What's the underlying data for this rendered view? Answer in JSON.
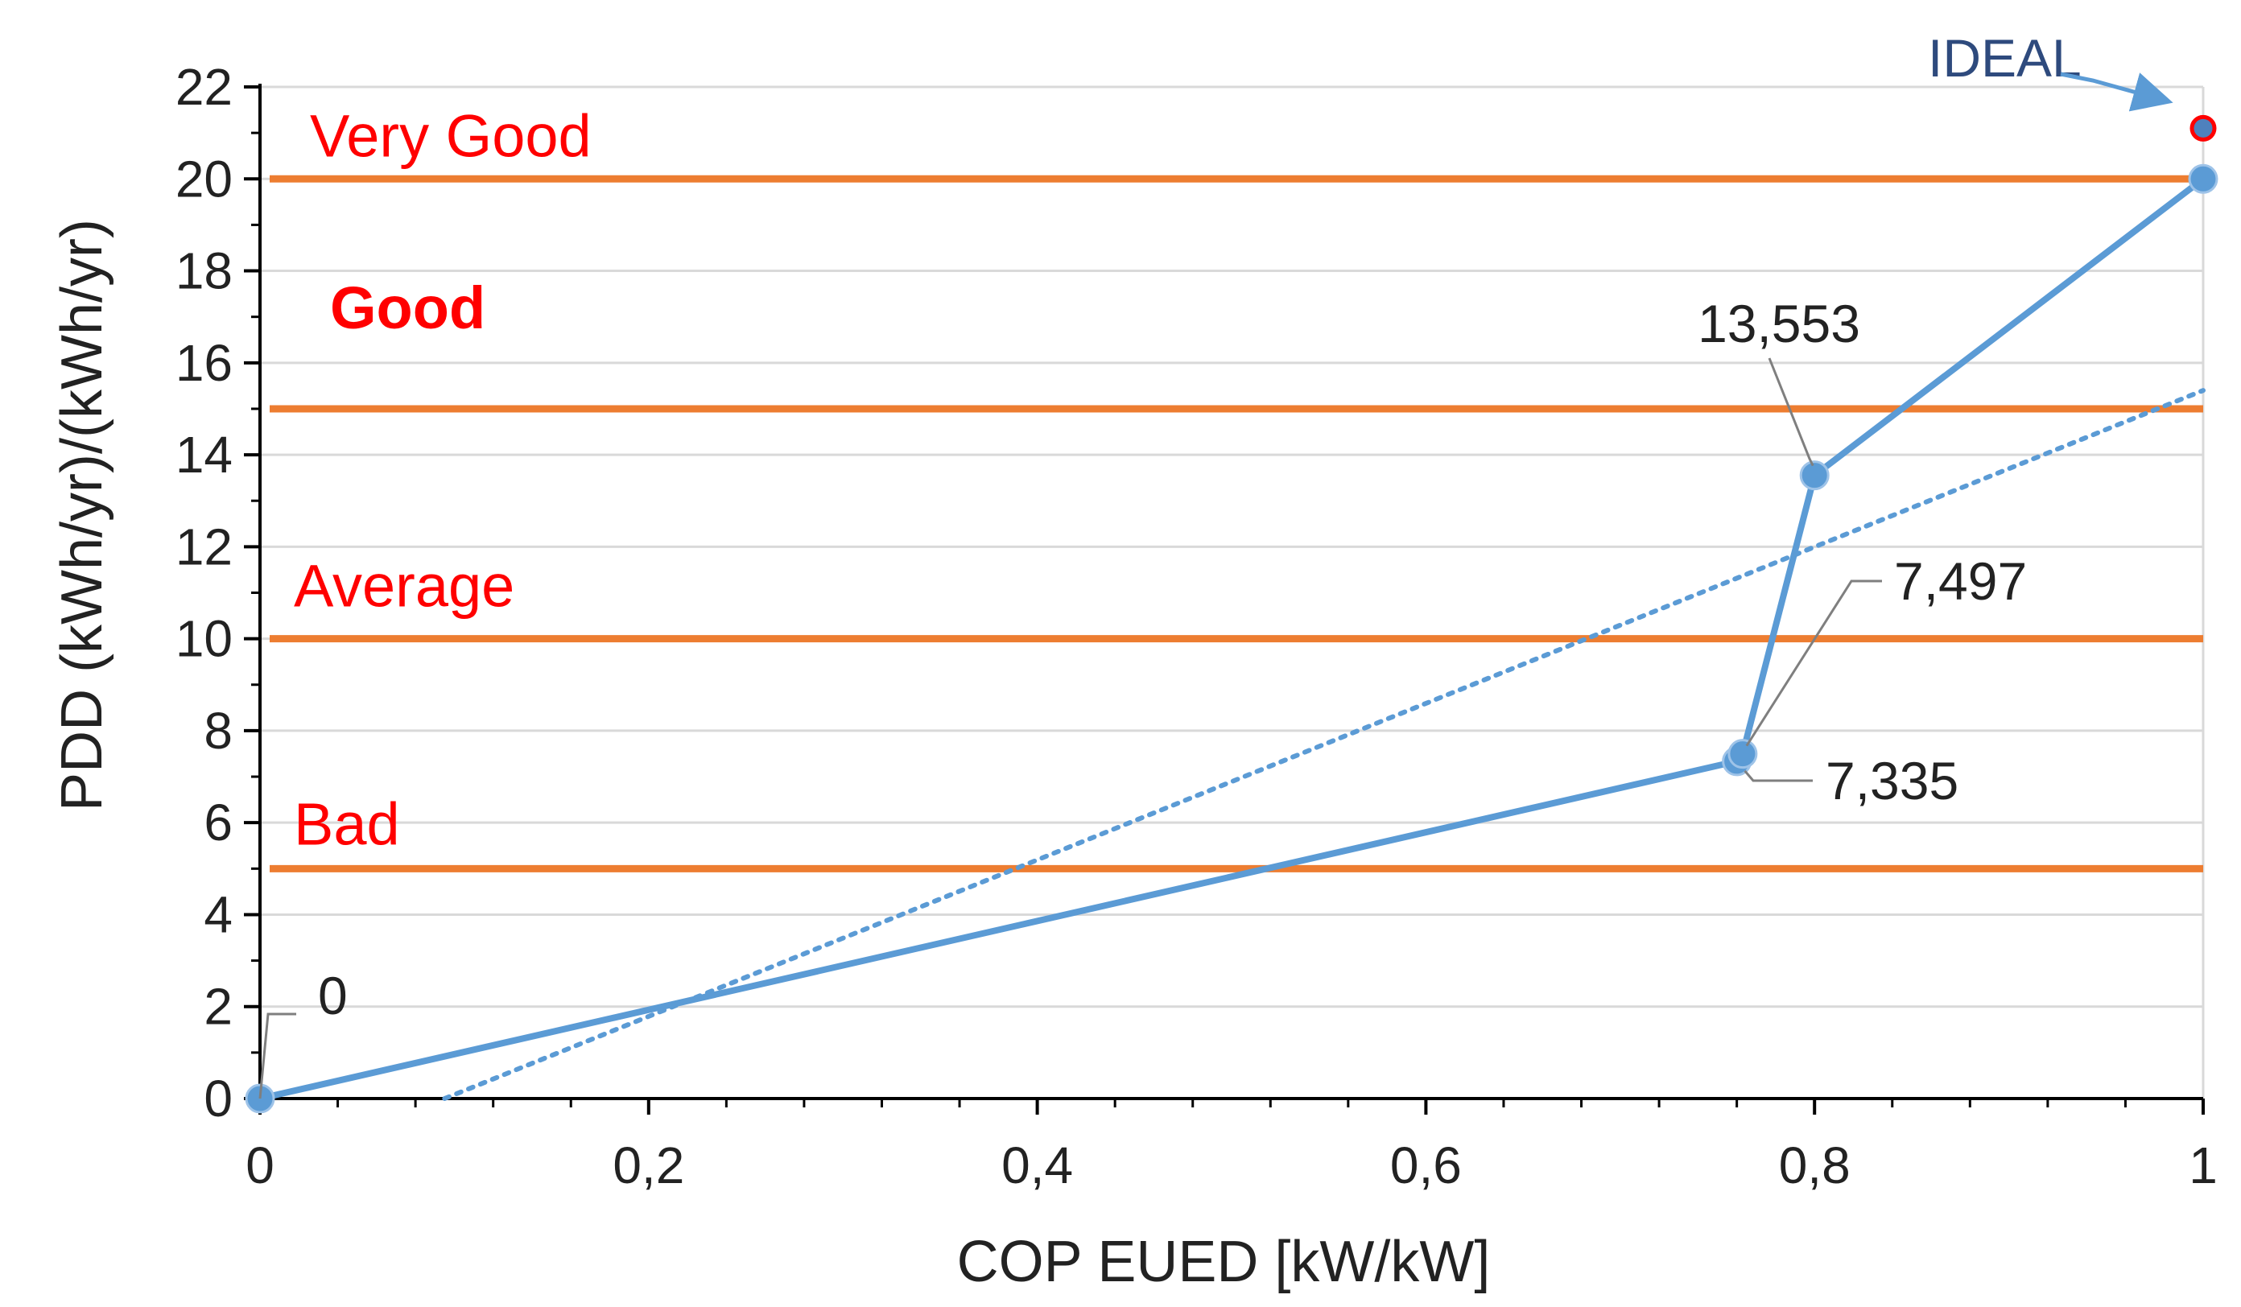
{
  "colors": {
    "series": "#5b9bd5",
    "trend": "#5b9bd5",
    "band_line": "#ed7d31",
    "band_text": "#ff0000",
    "grid": "#d9d9d9",
    "axis": "#000000",
    "ideal_text": "#2e4a7d",
    "ideal_marker_fill": "#4f81bd",
    "ideal_marker_stroke": "#ff0000",
    "leader": "#7f7f7f"
  },
  "chart_data": {
    "type": "line",
    "title": "",
    "xlabel": "COP EUED [kW/kW]",
    "ylabel": "PDD (kWh/yr)/(kWh/yr)",
    "xlim": [
      0,
      1
    ],
    "ylim": [
      0,
      22
    ],
    "xticks": [
      0,
      0.2,
      0.4,
      0.6,
      0.8,
      1
    ],
    "xtick_labels": [
      "0",
      "0,2",
      "0,4",
      "0,6",
      "0,8",
      "1"
    ],
    "yticks": [
      0,
      2,
      4,
      6,
      8,
      10,
      12,
      14,
      16,
      18,
      20,
      22
    ],
    "ytick_labels": [
      "0",
      "2",
      "4",
      "6",
      "8",
      "10",
      "12",
      "14",
      "16",
      "18",
      "20",
      "22"
    ],
    "grid": true,
    "series": [
      {
        "name": "PDD",
        "style": "solid-markers",
        "x": [
          0,
          0.76,
          0.763,
          0.8,
          1
        ],
        "y": [
          0,
          7.335,
          7.497,
          13.553,
          20
        ]
      }
    ],
    "trendline": {
      "style": "dotted",
      "x": [
        0.095,
        1
      ],
      "y": [
        0,
        15.4
      ]
    },
    "data_labels": [
      {
        "text": "0",
        "x": 0,
        "y": 0
      },
      {
        "text": "7,335",
        "x": 0.76,
        "y": 7.335
      },
      {
        "text": "7,497",
        "x": 0.763,
        "y": 7.497
      },
      {
        "text": "13,553",
        "x": 0.8,
        "y": 13.553
      }
    ],
    "bands": [
      {
        "label": "Bad",
        "y": 5
      },
      {
        "label": "Average",
        "y": 10
      },
      {
        "label": "Good",
        "y": 15
      },
      {
        "label": "Very Good",
        "y": 20
      }
    ],
    "ideal": {
      "label": "IDEAL",
      "x": 1,
      "y": 21.1
    }
  }
}
